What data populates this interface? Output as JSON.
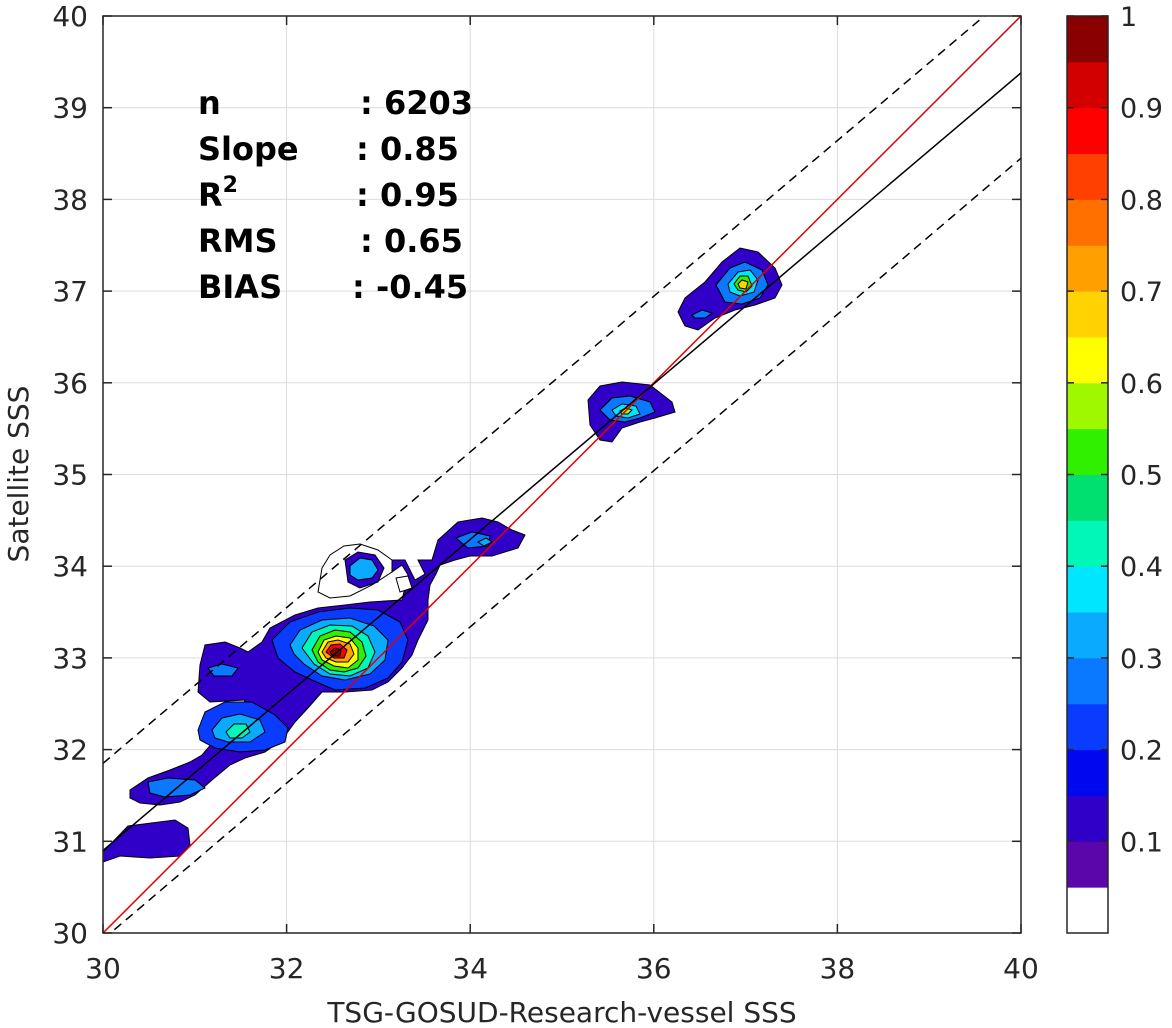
{
  "chart_data": {
    "type": "contour",
    "xlabel": "TSG-GOSUD-Research-vessel SSS",
    "ylabel": "Satellite SSS",
    "xlim": [
      30,
      40
    ],
    "ylim": [
      30,
      40
    ],
    "xticks": [
      "30",
      "32",
      "34",
      "36",
      "38",
      "40"
    ],
    "yticks": [
      "30",
      "31",
      "32",
      "33",
      "34",
      "35",
      "36",
      "37",
      "38",
      "39",
      "40"
    ],
    "grid": true,
    "colormap": "jet",
    "colorbar": {
      "min": 0,
      "max": 1,
      "ticks": [
        "0.1",
        "0.2",
        "0.3",
        "0.4",
        "0.5",
        "0.6",
        "0.7",
        "0.8",
        "0.9",
        "1"
      ],
      "colors": [
        "#ffffff",
        "#5a06aa",
        "#3000c8",
        "#0008f0",
        "#0a3cff",
        "#0a78ff",
        "#0aaaff",
        "#00e6ff",
        "#00f7b8",
        "#00e070",
        "#30f000",
        "#a0f800",
        "#ffff00",
        "#ffd200",
        "#ffa000",
        "#ff7000",
        "#ff4000",
        "#ff0000",
        "#d20000",
        "#8a0000"
      ]
    },
    "stats": [
      {
        "label": "n",
        "value": ": 6203"
      },
      {
        "label": "Slope",
        "value": ": 0.85"
      },
      {
        "label": "R",
        "sup": "2",
        "value": ": 0.95"
      },
      {
        "label": "RMS",
        "value": ": 0.65"
      },
      {
        "label": "BIAS",
        "value": ": -0.45"
      }
    ],
    "lines": [
      {
        "name": "identity",
        "color": "#e00000",
        "style": "solid",
        "x": [
          30,
          40
        ],
        "y": [
          30,
          40
        ]
      },
      {
        "name": "regression",
        "color": "#000000",
        "style": "solid",
        "x": [
          30,
          40
        ],
        "y": [
          30.9,
          39.38
        ]
      },
      {
        "name": "upper-bound",
        "color": "#000000",
        "style": "dashed",
        "x": [
          30,
          39.6
        ],
        "y": [
          31.85,
          40
        ]
      },
      {
        "name": "lower-bound",
        "color": "#000000",
        "style": "dashed",
        "x": [
          30,
          40
        ],
        "y": [
          29.93,
          38.45
        ]
      }
    ],
    "density_peaks": [
      {
        "x": 32.5,
        "y": 33.05,
        "max": 1.0
      },
      {
        "x": 31.5,
        "y": 32.2,
        "max": 0.45
      },
      {
        "x": 32.8,
        "y": 33.97,
        "max": 0.3
      },
      {
        "x": 34.15,
        "y": 34.22,
        "max": 0.2
      },
      {
        "x": 30.8,
        "y": 31.55,
        "max": 0.15
      },
      {
        "x": 35.65,
        "y": 35.65,
        "max": 0.65
      },
      {
        "x": 37.0,
        "y": 37.1,
        "max": 0.7
      },
      {
        "x": 36.55,
        "y": 36.75,
        "max": 0.2
      },
      {
        "x": 31.25,
        "y": 32.85,
        "max": 0.2
      }
    ]
  }
}
